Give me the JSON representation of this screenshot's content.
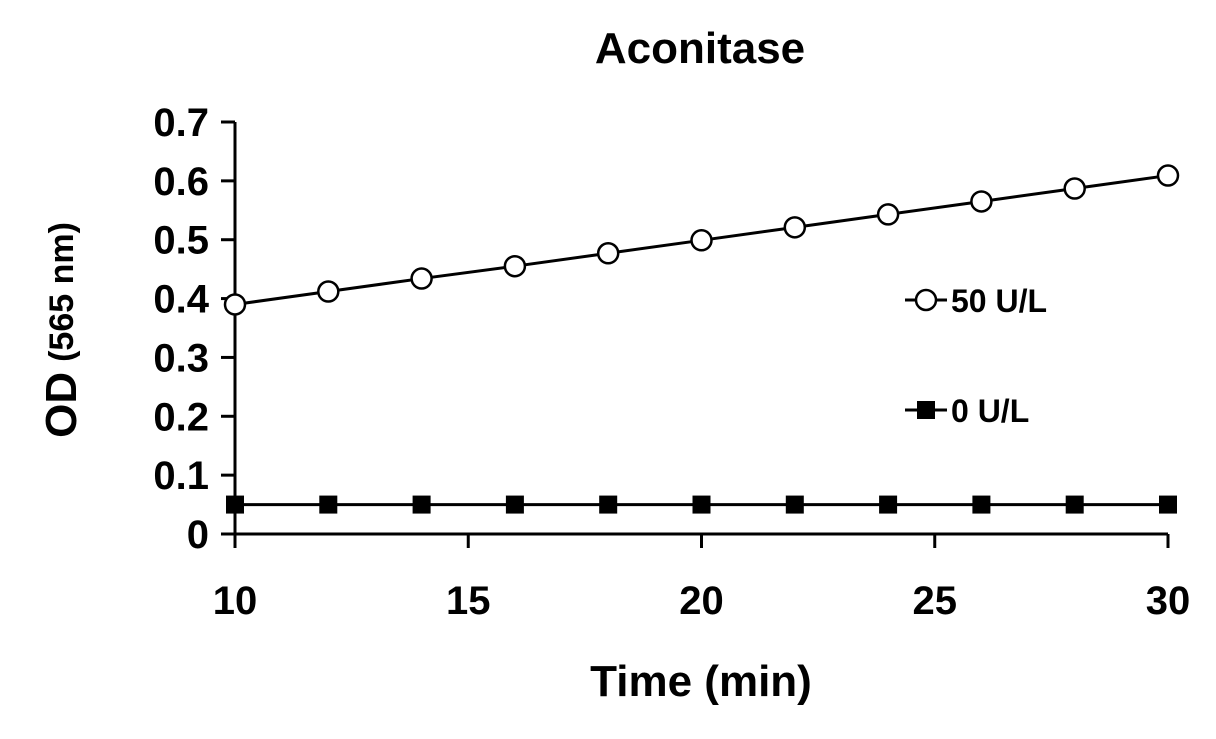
{
  "chart_data": {
    "type": "line",
    "title": "Aconitase",
    "xlabel": "Time (min)",
    "ylabel": "OD",
    "ylabel_unit": "(565 nm)",
    "xlim": [
      10,
      30
    ],
    "ylim": [
      0,
      0.7
    ],
    "x_ticks": [
      10,
      15,
      20,
      25,
      30
    ],
    "x_tick_labels": [
      "10",
      "15",
      "20",
      "25",
      "30"
    ],
    "y_ticks": [
      0,
      0.1,
      0.2,
      0.3,
      0.4,
      0.5,
      0.6,
      0.7
    ],
    "y_tick_labels": [
      "0",
      "0.1",
      "0.2",
      "0.3",
      "0.4",
      "0.5",
      "0.6",
      "0.7"
    ],
    "grid": false,
    "legend_position": "right",
    "x": [
      10,
      12,
      14,
      16,
      18,
      20,
      22,
      24,
      26,
      28,
      30
    ],
    "series": [
      {
        "name": "50 U/L",
        "marker": "open-circle",
        "values": [
          0.39,
          0.412,
          0.434,
          0.455,
          0.477,
          0.499,
          0.521,
          0.543,
          0.565,
          0.587,
          0.609
        ]
      },
      {
        "name": "0 U/L",
        "marker": "filled-square",
        "values": [
          0.05,
          0.05,
          0.05,
          0.05,
          0.05,
          0.05,
          0.05,
          0.05,
          0.05,
          0.05,
          0.05
        ]
      }
    ],
    "colors": {
      "line": "#000000",
      "marker_fill_open": "#ffffff",
      "marker_fill_solid": "#000000"
    }
  }
}
